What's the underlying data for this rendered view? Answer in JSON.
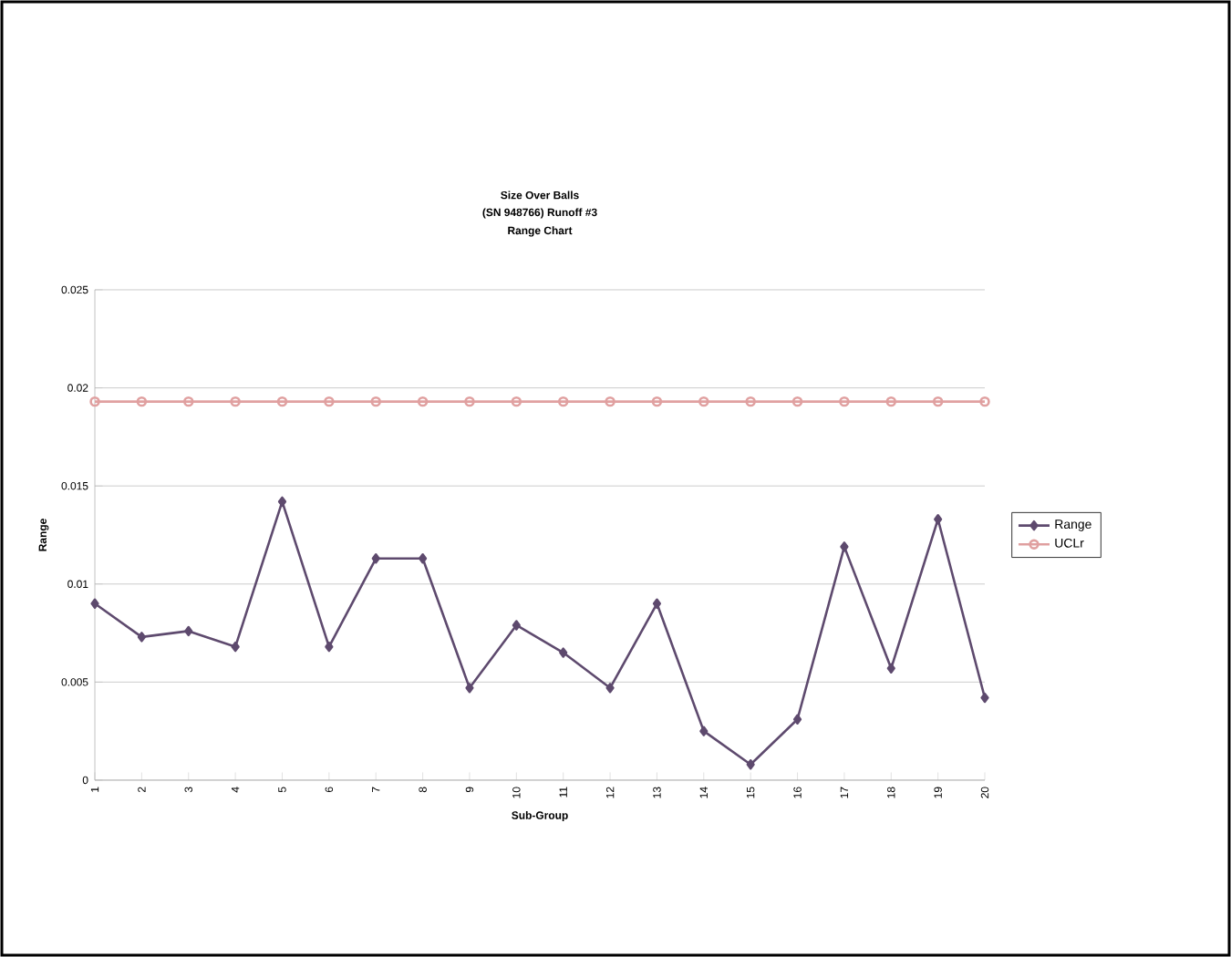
{
  "chart_data": {
    "type": "line",
    "title": "Size Over Balls",
    "subtitle": "(SN 948766) Runoff #3",
    "annotations": [
      "Range Chart"
    ],
    "xlabel": "Sub-Group",
    "ylabel": "Range",
    "categories": [
      "1",
      "2",
      "3",
      "4",
      "5",
      "6",
      "7",
      "8",
      "9",
      "10",
      "11",
      "12",
      "13",
      "14",
      "15",
      "16",
      "17",
      "18",
      "19",
      "20"
    ],
    "series": [
      {
        "name": "Range",
        "color": "#5e4a6e",
        "marker": "diamond",
        "values": [
          0.009,
          0.0073,
          0.0076,
          0.0068,
          0.0142,
          0.0068,
          0.0113,
          0.0113,
          0.0047,
          0.0079,
          0.0065,
          0.0047,
          0.009,
          0.0025,
          0.0008,
          0.0031,
          0.0119,
          0.0057,
          0.0133,
          0.0042
        ]
      },
      {
        "name": "UCLr",
        "color": "#e0a0a0",
        "marker": "circle",
        "values": [
          0.0193,
          0.0193,
          0.0193,
          0.0193,
          0.0193,
          0.0193,
          0.0193,
          0.0193,
          0.0193,
          0.0193,
          0.0193,
          0.0193,
          0.0193,
          0.0193,
          0.0193,
          0.0193,
          0.0193,
          0.0193,
          0.0193,
          0.0193
        ]
      }
    ],
    "ylim": [
      0,
      0.025
    ],
    "yticks": [
      0,
      0.005,
      0.01,
      0.015,
      0.02,
      0.025
    ],
    "grid": "y",
    "legend": "right"
  }
}
